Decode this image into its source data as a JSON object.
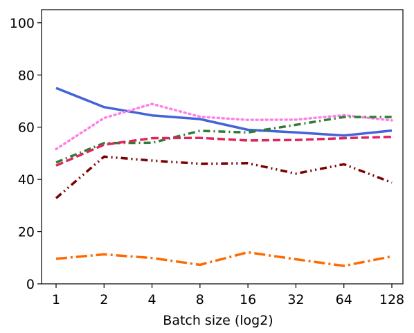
{
  "chart_data": {
    "type": "line",
    "title": "",
    "xlabel": "Batch size (log2)",
    "ylabel": "",
    "categories": [
      "1",
      "2",
      "4",
      "8",
      "16",
      "32",
      "64",
      "128"
    ],
    "ylim": [
      0,
      105
    ],
    "yticks": [
      0,
      20,
      40,
      60,
      80,
      100
    ],
    "grid": false,
    "legend": "none",
    "series": [
      {
        "values": [
          75.0,
          67.7,
          64.5,
          63.1,
          59.0,
          58.0,
          56.8,
          58.7
        ],
        "color": "#4363d8",
        "dash": "solid"
      },
      {
        "values": [
          51.6,
          63.5,
          68.9,
          64.0,
          62.8,
          62.9,
          64.6,
          62.6
        ],
        "color": "#ff7fe8",
        "dash": "dotted"
      },
      {
        "values": [
          46.5,
          53.9,
          54.0,
          58.6,
          58.0,
          60.9,
          63.9,
          63.9
        ],
        "color": "#2e7d32",
        "dash": "dashdot"
      },
      {
        "values": [
          45.3,
          53.3,
          55.8,
          55.9,
          54.9,
          55.1,
          55.8,
          56.3
        ],
        "color": "#e0245e",
        "dash": "dashed"
      },
      {
        "values": [
          32.8,
          48.7,
          47.2,
          46.0,
          46.2,
          42.2,
          45.8,
          38.8
        ],
        "color": "#7b0000",
        "dash": "dashdotdot"
      },
      {
        "values": [
          9.6,
          11.3,
          9.9,
          7.3,
          12.1,
          9.4,
          6.9,
          10.5
        ],
        "color": "#ff6a00",
        "dash": "longdashdot"
      }
    ]
  }
}
